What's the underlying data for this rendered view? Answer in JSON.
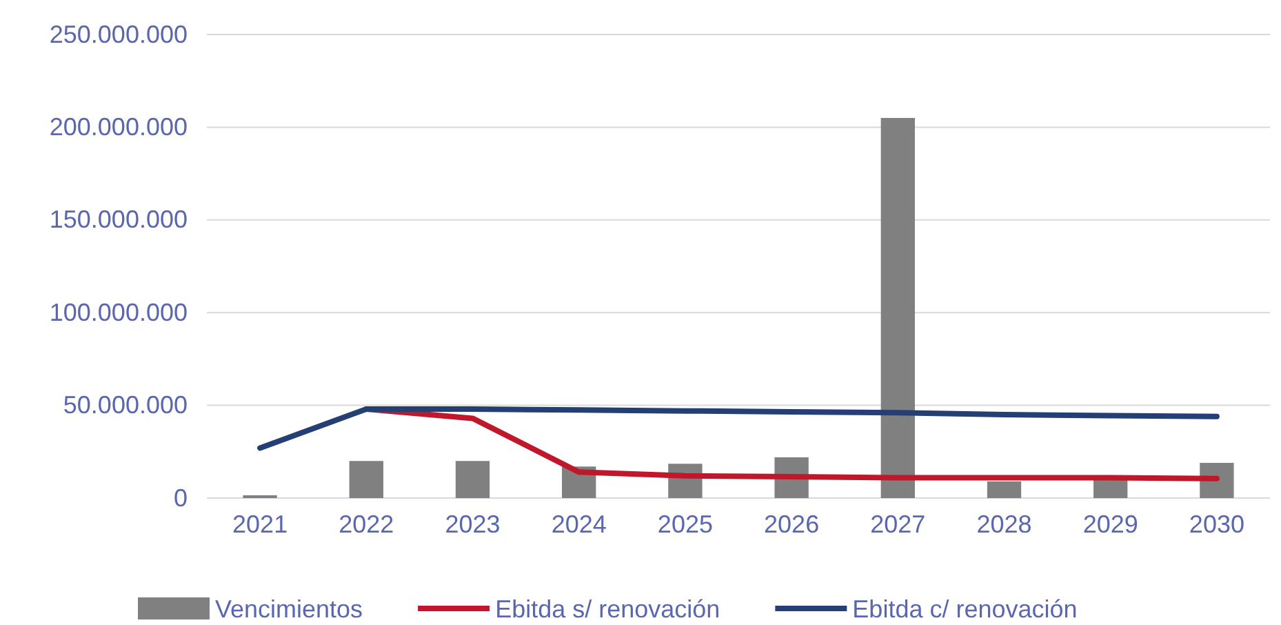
{
  "chart_data": {
    "type": "bar",
    "categories": [
      "2021",
      "2022",
      "2023",
      "2024",
      "2025",
      "2026",
      "2027",
      "2028",
      "2029",
      "2030"
    ],
    "series": [
      {
        "name": "Vencimientos",
        "color": "#808080",
        "values": [
          1500000,
          20000000,
          20000000,
          17000000,
          18500000,
          22000000,
          205000000,
          9000000,
          11000000,
          19000000
        ]
      },
      {
        "name": "Ebitda s/ renovación",
        "type": "line",
        "color": "#c0182a",
        "values": [
          null,
          48000000,
          43000000,
          14000000,
          12000000,
          11500000,
          11000000,
          11000000,
          11000000,
          10500000
        ]
      },
      {
        "name": "Ebitda c/ renovación",
        "type": "line",
        "color": "#243f73",
        "values": [
          27000000,
          48000000,
          48000000,
          47500000,
          47000000,
          46500000,
          46000000,
          45000000,
          44500000,
          44000000
        ]
      }
    ],
    "ylim": [
      0,
      250000000
    ],
    "yticks": [
      {
        "value": 0,
        "label": "0"
      },
      {
        "value": 50000000,
        "label": "50.000.000"
      },
      {
        "value": 100000000,
        "label": "100.000.000"
      },
      {
        "value": 150000000,
        "label": "150.000.000"
      },
      {
        "value": 200000000,
        "label": "200.000.000"
      },
      {
        "value": 250000000,
        "label": "250.000.000"
      }
    ],
    "grid": "y",
    "legend": "bottom",
    "line_style": "solid",
    "marker": "none"
  }
}
